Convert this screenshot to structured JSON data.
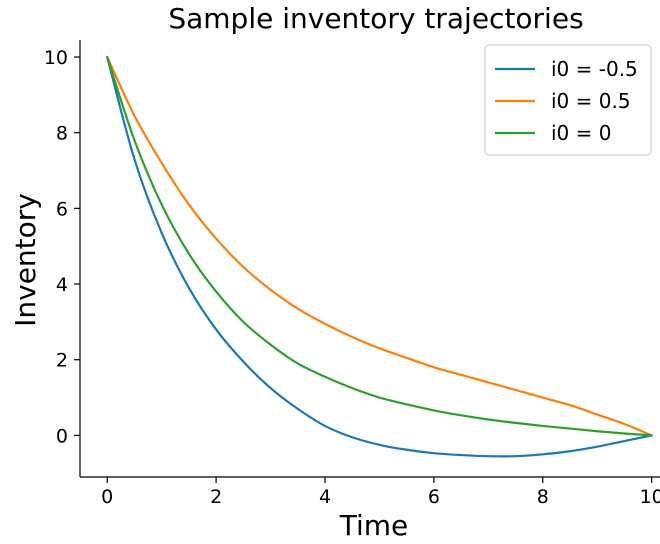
{
  "chart_data": {
    "type": "line",
    "title": "Sample inventory trajectories",
    "xlabel": "Time",
    "ylabel": "Inventory",
    "xlim": [
      -0.5,
      10.3
    ],
    "ylim": [
      -1.1,
      10.45
    ],
    "xticks": [
      0,
      2,
      4,
      6,
      8,
      10
    ],
    "yticks": [
      0,
      2,
      4,
      6,
      8,
      10
    ],
    "grid": false,
    "legend_position": "top-right",
    "x": [
      0,
      0.5,
      1,
      1.5,
      2,
      2.5,
      3,
      3.5,
      4,
      4.5,
      5,
      5.5,
      6,
      6.5,
      7,
      7.5,
      8,
      8.5,
      9,
      9.5,
      10
    ],
    "series": [
      {
        "name": "i0 = -0.5",
        "color": "#1f77b4",
        "values": [
          10,
          7.3,
          5.35,
          3.9,
          2.8,
          1.95,
          1.25,
          0.7,
          0.25,
          -0.05,
          -0.25,
          -0.38,
          -0.47,
          -0.52,
          -0.55,
          -0.55,
          -0.5,
          -0.42,
          -0.3,
          -0.15,
          0
        ]
      },
      {
        "name": "i0 = 0.5",
        "color": "#ff7f0e",
        "values": [
          10,
          8.45,
          7.2,
          6.1,
          5.2,
          4.45,
          3.85,
          3.35,
          2.95,
          2.6,
          2.3,
          2.05,
          1.8,
          1.6,
          1.4,
          1.2,
          1.0,
          0.8,
          0.55,
          0.3,
          0
        ]
      },
      {
        "name": "i0 = 0",
        "color": "#2ca02c",
        "values": [
          10,
          7.8,
          6.1,
          4.8,
          3.8,
          3.0,
          2.4,
          1.9,
          1.55,
          1.25,
          1.0,
          0.82,
          0.66,
          0.53,
          0.42,
          0.33,
          0.25,
          0.18,
          0.11,
          0.05,
          0
        ]
      }
    ]
  }
}
